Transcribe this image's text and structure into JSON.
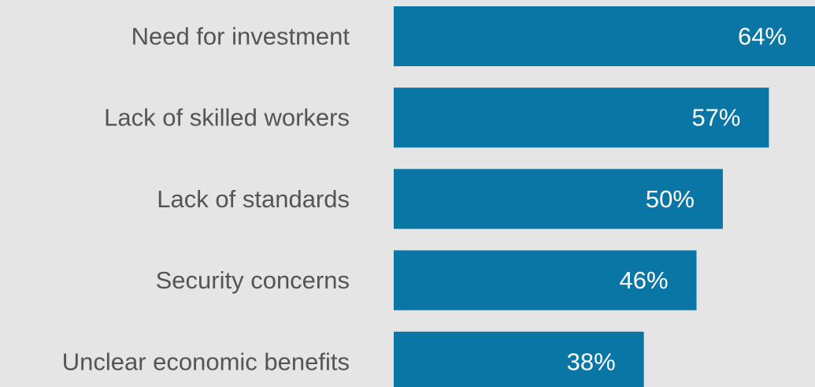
{
  "colors": {
    "background": "#e5e5e5",
    "bar": "#0a76a6",
    "category_text": "#555555",
    "value_text": "#ffffff"
  },
  "chart_data": {
    "type": "bar",
    "orientation": "horizontal",
    "categories": [
      "Need for investment",
      "Lack of skilled workers",
      "Lack of standards",
      "Security concerns",
      "Unclear economic benefits"
    ],
    "values": [
      64,
      57,
      50,
      46,
      38
    ],
    "value_labels": [
      "64%",
      "57%",
      "50%",
      "46%",
      "38%"
    ],
    "unit": "%",
    "title": "",
    "xlabel": "",
    "ylabel": "",
    "grid": false,
    "legend": "none"
  }
}
